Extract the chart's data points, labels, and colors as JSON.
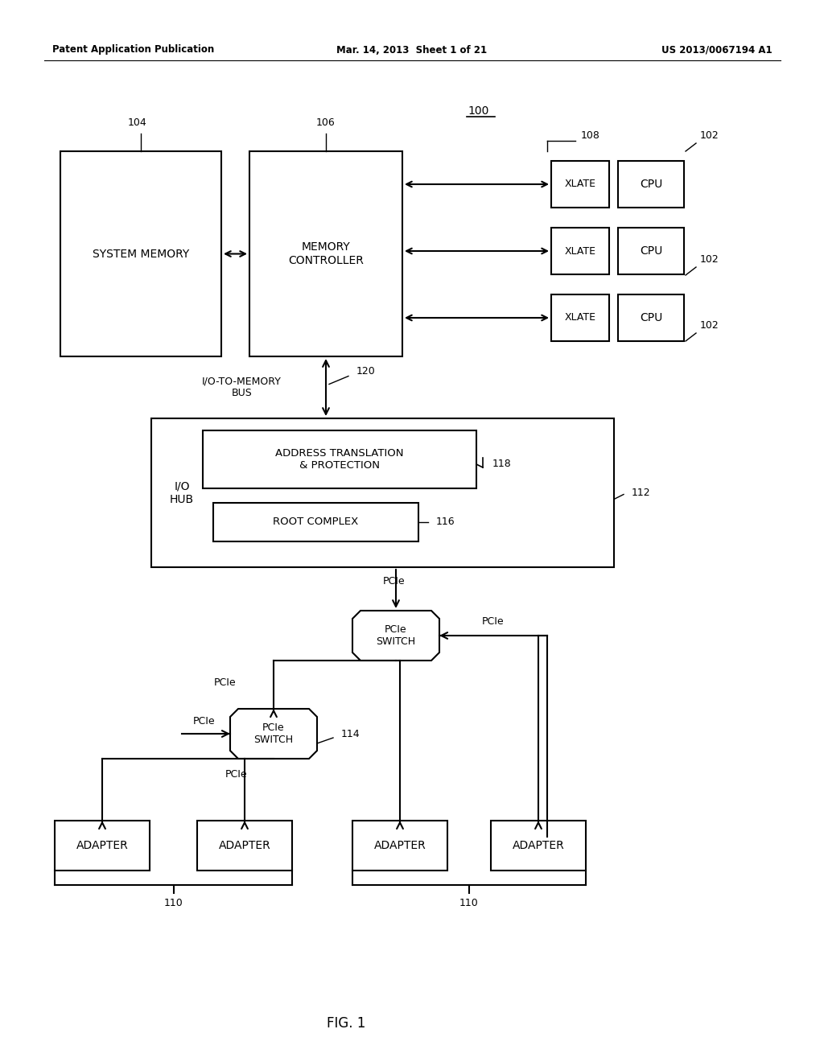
{
  "bg_color": "#ffffff",
  "header_left": "Patent Application Publication",
  "header_center": "Mar. 14, 2013  Sheet 1 of 21",
  "header_right": "US 2013/0067194 A1",
  "fig_label": "FIG. 1",
  "ref_100": "100",
  "ref_104": "104",
  "ref_106": "106",
  "ref_108": "108",
  "ref_102a": "102",
  "ref_102b": "102",
  "ref_102c": "102",
  "ref_120": "120",
  "ref_118": "118",
  "ref_112": "112",
  "ref_116": "116",
  "ref_114": "114",
  "ref_110a": "110",
  "ref_110b": "110",
  "label_sysm": "SYSTEM MEMORY",
  "label_memc": "MEMORY\nCONTROLLER",
  "label_xlate": "XLATE",
  "label_cpu": "CPU",
  "label_iohub": "I/O\nHUB",
  "label_addrtr": "ADDRESS TRANSLATION\n& PROTECTION",
  "label_rootc": "ROOT COMPLEX",
  "label_pcie_switch": "PCIe\nSWITCH",
  "label_adapter": "ADAPTER",
  "label_iomembus": "I/O-TO-MEMORY\nBUS",
  "label_pcie": "PCIe",
  "line_color": "#000000",
  "box_color": "#ffffff",
  "text_color": "#000000"
}
